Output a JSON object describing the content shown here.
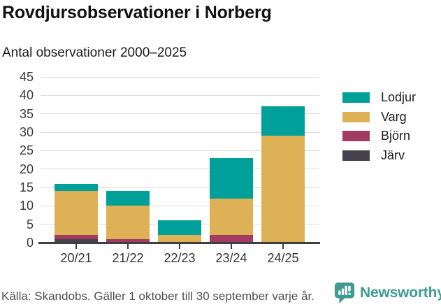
{
  "header": {
    "title": "Rovdjursobservationer i Norberg",
    "subtitle": "Antal observationer 2000–2025"
  },
  "chart_data": {
    "type": "bar",
    "stacked": true,
    "title": "Rovdjursobservationer i Norberg",
    "subtitle": "Antal observationer 2000–2025",
    "categories": [
      "20/21",
      "21/22",
      "22/23",
      "23/24",
      "24/25"
    ],
    "series": [
      {
        "name": "Järv",
        "color": "#45424e",
        "values": [
          1,
          0,
          0,
          0,
          0
        ]
      },
      {
        "name": "Björn",
        "color": "#a23b61",
        "values": [
          1,
          1,
          0,
          2,
          0
        ]
      },
      {
        "name": "Varg",
        "color": "#dfb156",
        "values": [
          12,
          9,
          2,
          10,
          29
        ]
      },
      {
        "name": "Lodjur",
        "color": "#00a09a",
        "values": [
          2,
          4,
          4,
          11,
          8
        ]
      }
    ],
    "totals": [
      16,
      14,
      6,
      23,
      37
    ],
    "legend": [
      "Lodjur",
      "Varg",
      "Björn",
      "Järv"
    ],
    "legend_position": "right",
    "ylim": [
      0,
      45
    ],
    "yticks": [
      0,
      5,
      10,
      15,
      20,
      25,
      30,
      35,
      40,
      45
    ],
    "grid": true,
    "xlabel": "",
    "ylabel": ""
  },
  "footer": {
    "source": "Källa: Skandobs. Gäller 1 oktober till 30 september varje år.",
    "brand": "Newsworthy"
  },
  "colors": {
    "grid": "#dcdcdc",
    "axis": "#3f3f3f",
    "tick_text": "#3a3a3a",
    "title_text": "#111111",
    "footer_text": "#4f4f4f",
    "brand_teal": "#3e9b93"
  }
}
